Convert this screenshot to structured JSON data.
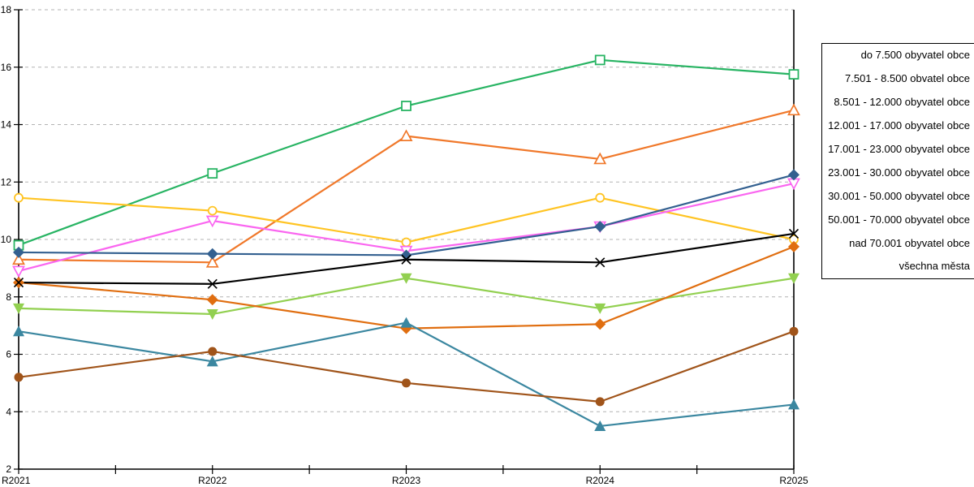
{
  "chart_data": {
    "type": "line",
    "categories": [
      "R2021",
      "R2022",
      "R2023",
      "R2024",
      "R2025"
    ],
    "ylim": [
      2,
      18
    ],
    "ytick_interval": 2,
    "y_tick_labels": [
      "18",
      "16",
      "14",
      "12",
      "10",
      "8",
      "6",
      "4",
      "2"
    ],
    "grid": "horizontal-dashed",
    "grid_color": "#b3b3b3",
    "axis_color": "#000000",
    "legend_position": "right-outside",
    "legend_border_color": "#000000",
    "series": [
      {
        "name": "do 7.500 obyvatel obce",
        "color": "#28b463",
        "marker": "open-square",
        "values": [
          9.8,
          12.3,
          14.65,
          16.25,
          15.75
        ]
      },
      {
        "name": "7.501 - 8.500 obvatel obce",
        "color": "#f0782a",
        "marker": "open-triangle-up",
        "values": [
          9.3,
          9.2,
          13.6,
          12.8,
          14.5
        ]
      },
      {
        "name": "8.501 - 12.000 obyvatel obce",
        "color": "#ffc423",
        "marker": "open-circle",
        "values": [
          11.45,
          11.0,
          9.9,
          11.45,
          10.0
        ]
      },
      {
        "name": "12.001 - 17.000 obyvatel obce",
        "color": "#fa66f0",
        "marker": "open-triangle-down",
        "values": [
          8.9,
          10.65,
          9.6,
          10.45,
          11.95
        ]
      },
      {
        "name": "17.001 - 23.000 obyvatel obce",
        "color": "#336090",
        "marker": "diamond",
        "values": [
          9.55,
          9.5,
          9.45,
          10.45,
          12.25
        ]
      },
      {
        "name": "23.001 - 30.000 obyvatel obce",
        "color": "#92d050",
        "marker": "triangle-down",
        "values": [
          7.6,
          7.4,
          8.65,
          7.6,
          8.65
        ]
      },
      {
        "name": "30.001 - 50.000 obyvatel obce",
        "color": "#e06e10",
        "marker": "diamond",
        "values": [
          8.5,
          7.9,
          6.9,
          7.05,
          9.75
        ]
      },
      {
        "name": "50.001 - 70.000 obyvatel obce",
        "color": "#3b87a0",
        "marker": "triangle-up",
        "values": [
          6.8,
          5.75,
          7.1,
          3.5,
          4.25
        ]
      },
      {
        "name": "nad 70.001 obyvatel obce",
        "color": "#a0541a",
        "marker": "circle",
        "values": [
          5.2,
          6.1,
          5.0,
          4.35,
          6.8
        ]
      },
      {
        "name": "všechna města",
        "color": "#000000",
        "marker": "x",
        "values": [
          8.5,
          8.45,
          9.3,
          9.2,
          10.2
        ]
      }
    ]
  }
}
